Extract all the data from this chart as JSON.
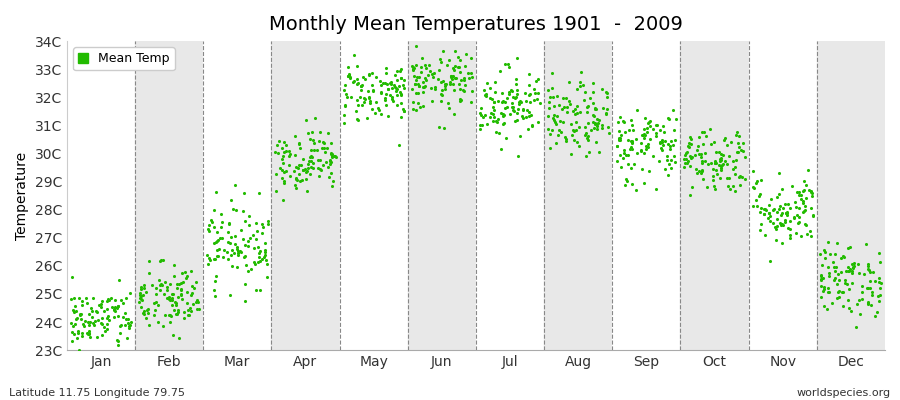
{
  "title": "Monthly Mean Temperatures 1901  -  2009",
  "ylabel": "Temperature",
  "footer_left": "Latitude 11.75 Longitude 79.75",
  "footer_right": "worldspecies.org",
  "legend_label": "Mean Temp",
  "dot_color": "#22bb00",
  "background_color": "#ffffff",
  "band_color": "#e8e8e8",
  "ylim": [
    23,
    34
  ],
  "ytick_labels": [
    "23C",
    "24C",
    "25C",
    "26C",
    "27C",
    "28C",
    "29C",
    "30C",
    "31C",
    "32C",
    "33C",
    "34C"
  ],
  "months": [
    "Jan",
    "Feb",
    "Mar",
    "Apr",
    "May",
    "Jun",
    "Jul",
    "Aug",
    "Sep",
    "Oct",
    "Nov",
    "Dec"
  ],
  "monthly_means": [
    24.1,
    24.8,
    26.8,
    29.8,
    32.2,
    32.5,
    31.8,
    31.2,
    30.3,
    29.8,
    28.0,
    25.5
  ],
  "monthly_stds": [
    0.55,
    0.65,
    0.75,
    0.55,
    0.55,
    0.55,
    0.65,
    0.65,
    0.7,
    0.6,
    0.65,
    0.65
  ],
  "n_years": 109,
  "seed": 42
}
